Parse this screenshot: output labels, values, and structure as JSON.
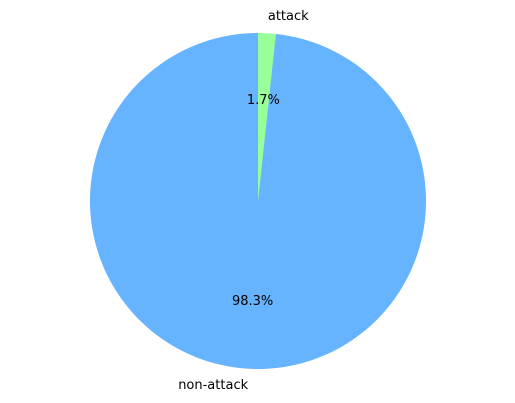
{
  "chart_data": {
    "type": "pie",
    "title": "",
    "start_angle_deg": 90,
    "direction": "clockwise",
    "slices": [
      {
        "label": "attack",
        "value": 1.7,
        "pct_text": "1.7%",
        "color": "#99ff99"
      },
      {
        "label": "non-attack",
        "value": 98.3,
        "pct_text": "98.3%",
        "color": "#66b3ff"
      }
    ],
    "legend": "none"
  }
}
